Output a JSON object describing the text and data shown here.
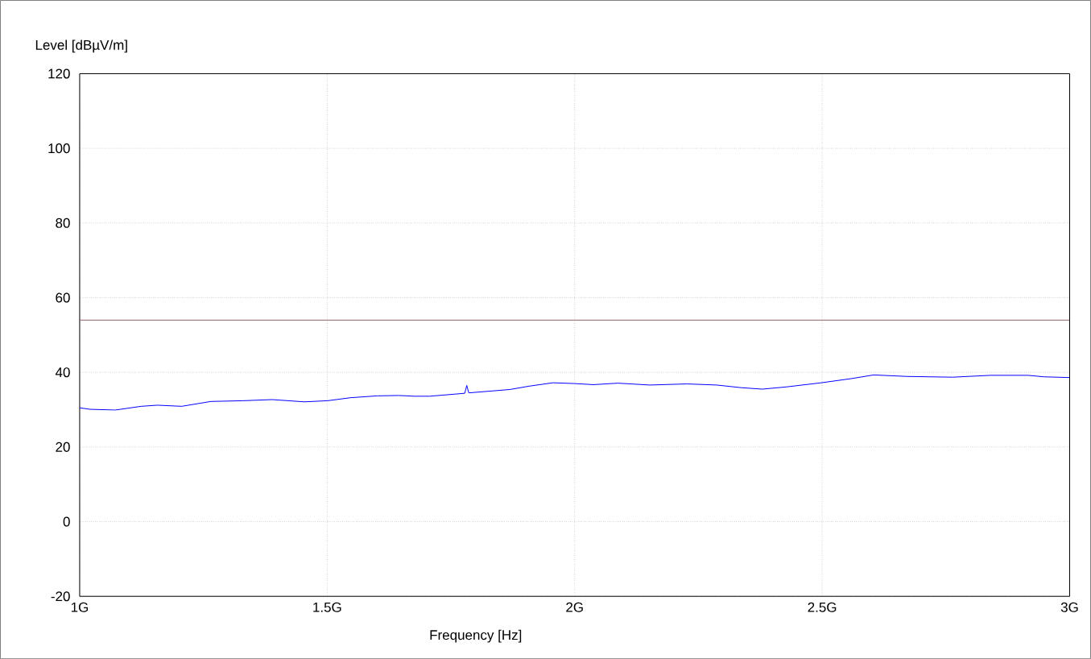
{
  "chart_data": {
    "type": "line",
    "xlabel": "Frequency [Hz]",
    "ylabel": "Level [dBµV/m]",
    "x": [
      1.0,
      1.021,
      1.072,
      1.124,
      1.157,
      1.206,
      1.265,
      1.33,
      1.389,
      1.454,
      1.501,
      1.547,
      1.601,
      1.645,
      1.677,
      1.707,
      1.761,
      1.778,
      1.782,
      1.786,
      1.869,
      1.908,
      1.956,
      2.0,
      2.038,
      2.087,
      2.152,
      2.227,
      2.287,
      2.336,
      2.379,
      2.428,
      2.498,
      2.558,
      2.604,
      2.672,
      2.764,
      2.84,
      2.916,
      2.948,
      3.0
    ],
    "series": [
      {
        "color": "#0000ff",
        "values": [
          30.5,
          30.1,
          29.9,
          30.9,
          31.2,
          30.9,
          32.2,
          32.4,
          32.7,
          32.1,
          32.4,
          33.2,
          33.7,
          33.8,
          33.6,
          33.6,
          34.2,
          34.4,
          36.5,
          34.5,
          35.4,
          36.3,
          37.2,
          37.0,
          36.7,
          37.1,
          36.6,
          36.9,
          36.6,
          35.9,
          35.5,
          36.1,
          37.2,
          38.3,
          39.3,
          38.9,
          38.7,
          39.2,
          39.2,
          38.8,
          38.6
        ]
      }
    ],
    "ref_lines": [
      {
        "axis": "y",
        "value": 54,
        "color": "#8b5a5a"
      }
    ],
    "xlim": [
      1,
      3
    ],
    "xticks": [
      {
        "value": 1,
        "label": "1G"
      },
      {
        "value": 1.5,
        "label": "1.5G"
      },
      {
        "value": 2,
        "label": "2G"
      },
      {
        "value": 2.5,
        "label": "2.5G"
      },
      {
        "value": 3,
        "label": "3G"
      }
    ],
    "ylim": [
      -20,
      120
    ],
    "yticks": [
      -20,
      0,
      20,
      40,
      60,
      80,
      100,
      120
    ],
    "grid": true,
    "marker": "none",
    "line_style": "solid"
  }
}
